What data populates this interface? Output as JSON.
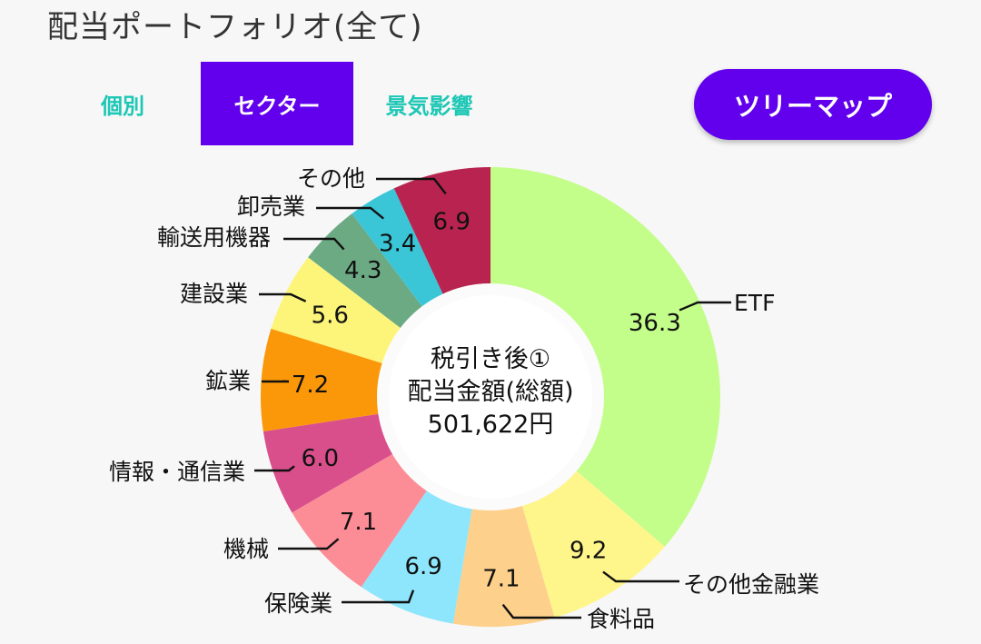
{
  "header": {
    "title": "配当ポートフォリオ(全て)"
  },
  "tabs": [
    {
      "label": "個別",
      "active": false
    },
    {
      "label": "セクター",
      "active": true
    },
    {
      "label": "景気影響",
      "active": false
    }
  ],
  "treemap_button": {
    "label": "ツリーマップ"
  },
  "center": {
    "line1": "税引き後①",
    "line2": "配当金額(総額)",
    "line3": "501,622円"
  },
  "colors": {
    "accent": "#6200ee",
    "tab_inactive": "#1dc7b5"
  },
  "chart_data": {
    "type": "pie",
    "subtype": "donut",
    "title": "",
    "slices": [
      {
        "label": "ETF",
        "value": 36.3,
        "value_label": "36.3",
        "color": "#c3fd8a"
      },
      {
        "label": "その他金融業",
        "value": 9.2,
        "value_label": "9.2",
        "color": "#fef58b"
      },
      {
        "label": "食料品",
        "value": 7.1,
        "value_label": "7.1",
        "color": "#fdd08c"
      },
      {
        "label": "保険業",
        "value": 6.9,
        "value_label": "6.9",
        "color": "#8ee6fc"
      },
      {
        "label": "機械",
        "value": 7.1,
        "value_label": "7.1",
        "color": "#fc8d97"
      },
      {
        "label": "情報・通信業",
        "value": 6.0,
        "value_label": "6.0",
        "color": "#d94f8b"
      },
      {
        "label": "鉱業",
        "value": 7.2,
        "value_label": "7.2",
        "color": "#fb9809"
      },
      {
        "label": "建設業",
        "value": 5.6,
        "value_label": "5.6",
        "color": "#fdf57a"
      },
      {
        "label": "輸送用機器",
        "value": 4.3,
        "value_label": "4.3",
        "color": "#6caa84"
      },
      {
        "label": "卸売業",
        "value": 3.4,
        "value_label": "3.4",
        "color": "#3ac6d7"
      },
      {
        "label": "その他",
        "value": 6.9,
        "value_label": "6.9",
        "color": "#b8244f"
      }
    ]
  }
}
